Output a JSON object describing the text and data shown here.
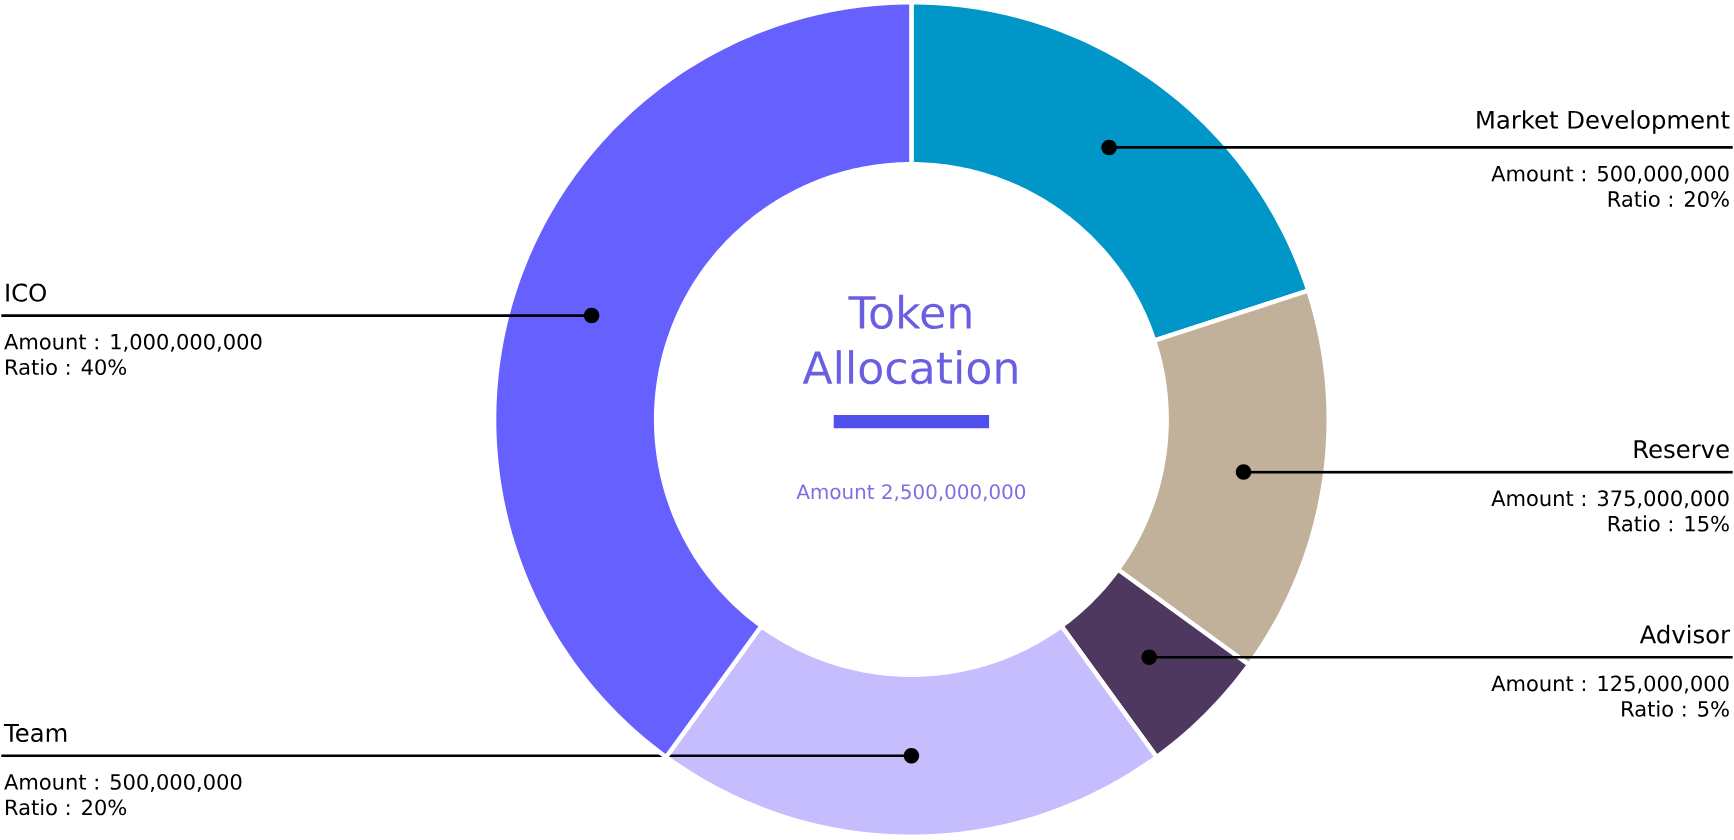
{
  "chart_data": {
    "type": "donut",
    "title": "Token Allocation",
    "subtitle": "Amount 2,500,000,000",
    "categories": [
      "Market Development",
      "Reserve",
      "Advisor",
      "Team",
      "ICO"
    ],
    "values": [
      500000000,
      375000000,
      125000000,
      500000000,
      1000000000
    ],
    "colors": [
      "#0096c8",
      "#c1b09a",
      "#4e3860",
      "#c6bdff",
      "#6660ff"
    ],
    "value_labels": [
      "Amount : 500,000,000",
      "Amount : 375,000,000",
      "Amount : 125,000,000",
      "Amount : 500,000,000",
      "Amount : 1,000,000,000"
    ],
    "annotations": [
      "Ratio : 20%",
      "Ratio : 15%",
      "Ratio : 5%",
      "Ratio : 20%",
      "Ratio : 40%"
    ]
  }
}
